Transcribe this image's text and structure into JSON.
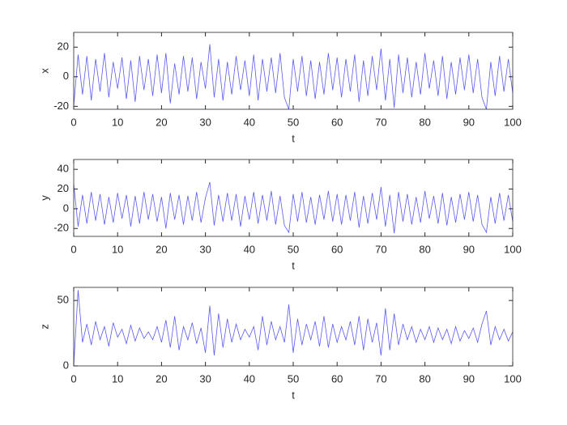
{
  "chart_data": [
    {
      "type": "line",
      "xlabel": "t",
      "ylabel": "x",
      "color": "#5a5af0",
      "x": [
        0,
        1,
        2,
        3,
        4,
        5,
        6,
        7,
        8,
        9,
        10,
        11,
        12,
        13,
        14,
        15,
        16,
        17,
        18,
        19,
        20,
        21,
        22,
        23,
        24,
        25,
        26,
        27,
        28,
        29,
        30,
        31,
        32,
        33,
        34,
        35,
        36,
        37,
        38,
        39,
        40,
        41,
        42,
        43,
        44,
        45,
        46,
        47,
        48,
        49,
        50,
        51,
        52,
        53,
        54,
        55,
        56,
        57,
        58,
        59,
        60,
        61,
        62,
        63,
        64,
        65,
        66,
        67,
        68,
        69,
        70,
        71,
        72,
        73,
        74,
        75,
        76,
        77,
        78,
        79,
        80,
        81,
        82,
        83,
        84,
        85,
        86,
        87,
        88,
        89,
        90,
        91,
        92,
        93,
        94,
        95,
        96,
        97,
        98,
        99,
        100
      ],
      "values": [
        -20,
        15,
        -12,
        14,
        -16,
        12,
        -10,
        16,
        -14,
        10,
        -8,
        13,
        -15,
        11,
        -17,
        14,
        -9,
        12,
        -13,
        15,
        -11,
        16,
        -18,
        9,
        -12,
        14,
        -10,
        13,
        -15,
        10,
        -8,
        22,
        -14,
        12,
        -16,
        10,
        -12,
        14,
        -9,
        11,
        -13,
        15,
        -16,
        12,
        -10,
        13,
        -11,
        16,
        -14,
        -22,
        12,
        -10,
        14,
        -13,
        11,
        -15,
        10,
        -12,
        16,
        -9,
        13,
        -14,
        12,
        -10,
        15,
        -17,
        11,
        -13,
        14,
        -9,
        19,
        -16,
        12,
        -21,
        15,
        -11,
        13,
        -14,
        10,
        -12,
        16,
        -8,
        11,
        -13,
        14,
        -15,
        10,
        -12,
        13,
        -9,
        15,
        -11,
        12,
        -14,
        -22,
        10,
        -13,
        14,
        -10,
        12,
        -11
      ],
      "xlim": [
        0,
        100
      ],
      "xticks": [
        0,
        10,
        20,
        30,
        40,
        50,
        60,
        70,
        80,
        90,
        100
      ],
      "ylim": [
        -22,
        30
      ],
      "yticks": [
        -20,
        0,
        20
      ]
    },
    {
      "type": "line",
      "xlabel": "t",
      "ylabel": "y",
      "color": "#5a5af0",
      "x": [
        0,
        1,
        2,
        3,
        4,
        5,
        6,
        7,
        8,
        9,
        10,
        11,
        12,
        13,
        14,
        15,
        16,
        17,
        18,
        19,
        20,
        21,
        22,
        23,
        24,
        25,
        26,
        27,
        28,
        29,
        30,
        31,
        32,
        33,
        34,
        35,
        36,
        37,
        38,
        39,
        40,
        41,
        42,
        43,
        44,
        45,
        46,
        47,
        48,
        49,
        50,
        51,
        52,
        53,
        54,
        55,
        56,
        57,
        58,
        59,
        60,
        61,
        62,
        63,
        64,
        65,
        66,
        67,
        68,
        69,
        70,
        71,
        72,
        73,
        74,
        75,
        76,
        77,
        78,
        79,
        80,
        81,
        82,
        83,
        84,
        85,
        86,
        87,
        88,
        89,
        90,
        91,
        92,
        93,
        94,
        95,
        96,
        97,
        98,
        99,
        100
      ],
      "values": [
        25,
        -18,
        14,
        -15,
        17,
        -12,
        15,
        -16,
        12,
        -14,
        16,
        -10,
        14,
        -18,
        13,
        -15,
        17,
        -11,
        15,
        -13,
        12,
        -20,
        16,
        -11,
        14,
        -16,
        13,
        -12,
        17,
        -14,
        11,
        27,
        -17,
        14,
        -13,
        16,
        -12,
        15,
        -18,
        13,
        -11,
        17,
        -15,
        14,
        -12,
        18,
        -16,
        13,
        -17,
        -24,
        15,
        -13,
        17,
        -14,
        12,
        -16,
        14,
        -11,
        18,
        -13,
        15,
        -16,
        14,
        -12,
        17,
        -19,
        13,
        -15,
        16,
        -11,
        22,
        -18,
        14,
        -25,
        17,
        -13,
        15,
        -16,
        12,
        -14,
        18,
        -10,
        13,
        -15,
        16,
        -17,
        12,
        -14,
        15,
        -11,
        17,
        -13,
        14,
        -16,
        -24,
        12,
        -15,
        16,
        -12,
        14,
        -13
      ],
      "xlim": [
        0,
        100
      ],
      "xticks": [
        0,
        10,
        20,
        30,
        40,
        50,
        60,
        70,
        80,
        90,
        100
      ],
      "ylim": [
        -28,
        50
      ],
      "yticks": [
        -20,
        0,
        20,
        40
      ]
    },
    {
      "type": "line",
      "xlabel": "t",
      "ylabel": "z",
      "color": "#5a5af0",
      "x": [
        0,
        1,
        2,
        3,
        4,
        5,
        6,
        7,
        8,
        9,
        10,
        11,
        12,
        13,
        14,
        15,
        16,
        17,
        18,
        19,
        20,
        21,
        22,
        23,
        24,
        25,
        26,
        27,
        28,
        29,
        30,
        31,
        32,
        33,
        34,
        35,
        36,
        37,
        38,
        39,
        40,
        41,
        42,
        43,
        44,
        45,
        46,
        47,
        48,
        49,
        50,
        51,
        52,
        53,
        54,
        55,
        56,
        57,
        58,
        59,
        60,
        61,
        62,
        63,
        64,
        65,
        66,
        67,
        68,
        69,
        70,
        71,
        72,
        73,
        74,
        75,
        76,
        77,
        78,
        79,
        80,
        81,
        82,
        83,
        84,
        85,
        86,
        87,
        88,
        89,
        90,
        91,
        92,
        93,
        94,
        95,
        96,
        97,
        98,
        99,
        100
      ],
      "values": [
        0,
        58,
        18,
        32,
        16,
        34,
        20,
        30,
        15,
        33,
        22,
        28,
        17,
        31,
        19,
        29,
        21,
        26,
        20,
        30,
        18,
        35,
        14,
        38,
        12,
        30,
        20,
        33,
        17,
        29,
        10,
        46,
        8,
        40,
        14,
        36,
        18,
        32,
        20,
        28,
        22,
        30,
        12,
        38,
        16,
        34,
        20,
        30,
        18,
        47,
        10,
        36,
        16,
        32,
        20,
        34,
        15,
        38,
        14,
        32,
        18,
        30,
        20,
        34,
        16,
        38,
        12,
        36,
        18,
        33,
        8,
        44,
        12,
        40,
        16,
        32,
        20,
        30,
        18,
        28,
        20,
        30,
        18,
        29,
        20,
        28,
        17,
        30,
        19,
        27,
        21,
        29,
        18,
        32,
        42,
        16,
        30,
        20,
        28,
        19,
        26
      ],
      "xlim": [
        0,
        100
      ],
      "xticks": [
        0,
        10,
        20,
        30,
        40,
        50,
        60,
        70,
        80,
        90,
        100
      ],
      "ylim": [
        0,
        60
      ],
      "yticks": [
        0,
        50
      ]
    }
  ]
}
